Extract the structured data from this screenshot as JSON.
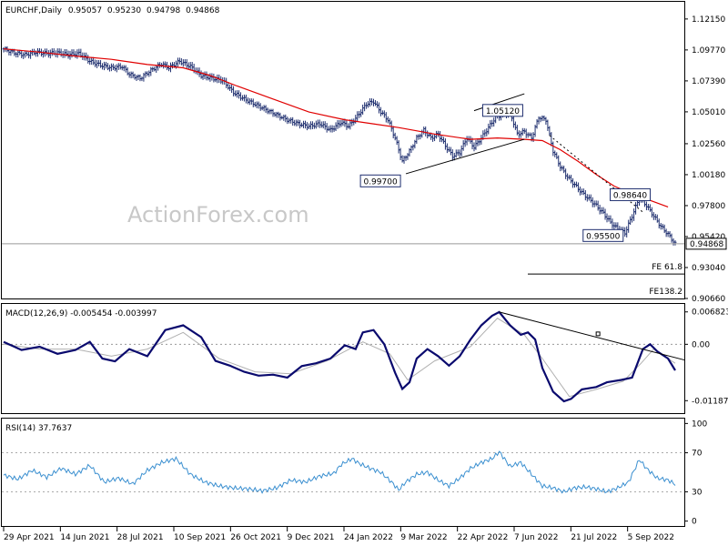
{
  "chart_data": [
    {
      "type": "ohlc",
      "title": "EURCHF,Daily",
      "ohlc_values": [
        "0.95057",
        "0.95230",
        "0.94798",
        "0.94868"
      ],
      "ylim": [
        0.9066,
        1.1347
      ],
      "y_ticks": [
        "1.12150",
        "1.09770",
        "1.07390",
        "1.05010",
        "1.02560",
        "1.00180",
        "0.97800",
        "0.95420",
        "0.93040",
        "0.90660"
      ],
      "x_ticks": [
        "29 Apr 2021",
        "14 Jun 2021",
        "28 Jul 2021",
        "10 Sep 2021",
        "26 Oct 2021",
        "9 Dec 2021",
        "24 Jan 2022",
        "9 Mar 2022",
        "22 Apr 2022",
        "7 Jun 2022",
        "21 Jul 2022",
        "5 Sep 2022"
      ],
      "last_price": "0.94868",
      "moving_average_color": "#e00000",
      "bar_color": "#1f2f6f",
      "close_path": [
        [
          0,
          1.0985
        ],
        [
          6,
          1.0955
        ],
        [
          12,
          1.094
        ],
        [
          18,
          1.096
        ],
        [
          24,
          1.095
        ],
        [
          30,
          1.0955
        ],
        [
          36,
          1.094
        ],
        [
          42,
          1.095
        ],
        [
          48,
          1.089
        ],
        [
          54,
          1.086
        ],
        [
          60,
          1.084
        ],
        [
          66,
          1.085
        ],
        [
          70,
          1.079
        ],
        [
          76,
          1.076
        ],
        [
          82,
          1.082
        ],
        [
          88,
          1.087
        ],
        [
          92,
          1.084
        ],
        [
          98,
          1.089
        ],
        [
          104,
          1.085
        ],
        [
          110,
          1.078
        ],
        [
          116,
          1.076
        ],
        [
          122,
          1.074
        ],
        [
          128,
          1.065
        ],
        [
          134,
          1.06
        ],
        [
          140,
          1.056
        ],
        [
          146,
          1.052
        ],
        [
          152,
          1.048
        ],
        [
          158,
          1.044
        ],
        [
          164,
          1.041
        ],
        [
          170,
          1.039
        ],
        [
          176,
          1.041
        ],
        [
          182,
          1.036
        ],
        [
          188,
          1.042
        ],
        [
          192,
          1.039
        ],
        [
          196,
          1.045
        ],
        [
          202,
          1.056
        ],
        [
          206,
          1.058
        ],
        [
          210,
          1.05
        ],
        [
          214,
          1.044
        ],
        [
          218,
          1.03
        ],
        [
          222,
          1.012
        ],
        [
          226,
          1.02
        ],
        [
          230,
          1.03
        ],
        [
          234,
          1.036
        ],
        [
          238,
          1.03
        ],
        [
          242,
          1.033
        ],
        [
          246,
          1.024
        ],
        [
          250,
          1.016
        ],
        [
          254,
          1.019
        ],
        [
          258,
          1.03
        ],
        [
          262,
          1.023
        ],
        [
          266,
          1.03
        ],
        [
          270,
          1.038
        ],
        [
          274,
          1.046
        ],
        [
          278,
          1.048
        ],
        [
          282,
          1.05
        ],
        [
          286,
          1.033
        ],
        [
          290,
          1.035
        ],
        [
          294,
          1.03
        ],
        [
          298,
          1.046
        ],
        [
          302,
          1.044
        ],
        [
          306,
          1.02
        ],
        [
          310,
          1.008
        ],
        [
          314,
          1.0
        ],
        [
          318,
          0.994
        ],
        [
          322,
          0.988
        ],
        [
          326,
          0.983
        ],
        [
          330,
          0.978
        ],
        [
          334,
          0.972
        ],
        [
          338,
          0.965
        ],
        [
          342,
          0.96
        ],
        [
          346,
          0.957
        ],
        [
          350,
          0.97
        ],
        [
          354,
          0.984
        ],
        [
          358,
          0.978
        ],
        [
          362,
          0.97
        ],
        [
          366,
          0.962
        ],
        [
          370,
          0.956
        ],
        [
          374,
          0.9487
        ]
      ],
      "moving_average": [
        [
          0,
          1.0985
        ],
        [
          20,
          1.096
        ],
        [
          40,
          1.093
        ],
        [
          60,
          1.0905
        ],
        [
          80,
          1.0865
        ],
        [
          100,
          1.084
        ],
        [
          115,
          1.078
        ],
        [
          130,
          1.07
        ],
        [
          150,
          1.06
        ],
        [
          170,
          1.05
        ],
        [
          190,
          1.044
        ],
        [
          205,
          1.041
        ],
        [
          220,
          1.038
        ],
        [
          240,
          1.033
        ],
        [
          260,
          1.029
        ],
        [
          275,
          1.03
        ],
        [
          290,
          1.029
        ],
        [
          300,
          1.028
        ],
        [
          310,
          1.021
        ],
        [
          320,
          1.012
        ],
        [
          330,
          1.002
        ],
        [
          340,
          0.993
        ],
        [
          350,
          0.987
        ],
        [
          360,
          0.982
        ],
        [
          370,
          0.977
        ]
      ],
      "annotations": [
        {
          "label": "0.99700",
          "bar": 221,
          "price": 0.997,
          "anchor": "left"
        },
        {
          "label": "1.05120",
          "bar": 283,
          "price": 1.0512,
          "anchor": "right"
        },
        {
          "label": "0.98640",
          "bar": 354,
          "price": 0.9864,
          "anchor": "right"
        },
        {
          "label": "0.95500",
          "bar": 345,
          "price": 0.955,
          "anchor": "left"
        }
      ],
      "fibonacci": [
        {
          "label": "FE 61.8",
          "price": 0.9282
        },
        {
          "label": "FE138.2",
          "price": 0.9095
        }
      ],
      "channel": [
        {
          "from": [
            224,
            1.0025
          ],
          "to": [
            290,
            1.029
          ]
        },
        {
          "from": [
            262,
            1.051
          ],
          "to": [
            290,
            1.064
          ]
        }
      ],
      "dotted_trendline": [
        [
          304,
          1.032
        ],
        [
          356,
          0.973
        ]
      ],
      "watermark": "ActionForex.com"
    },
    {
      "type": "line",
      "title": "MACD(12,26,9) -0.005454 -0.003997",
      "y_ticks": [
        "0.006823",
        "0.00",
        "-0.011874"
      ],
      "ylim": [
        -0.0145,
        0.0085
      ],
      "macd_color": "#0a0a6e",
      "signal_color": "#b0b0b0",
      "macd": [
        [
          0,
          0.0005
        ],
        [
          10,
          -0.0012
        ],
        [
          20,
          -0.0005
        ],
        [
          30,
          -0.002
        ],
        [
          40,
          -0.0012
        ],
        [
          48,
          0.0005
        ],
        [
          55,
          -0.003
        ],
        [
          62,
          -0.0036
        ],
        [
          70,
          -0.001
        ],
        [
          80,
          -0.0025
        ],
        [
          90,
          0.003
        ],
        [
          100,
          0.004
        ],
        [
          110,
          0.0015
        ],
        [
          118,
          -0.0035
        ],
        [
          126,
          -0.0045
        ],
        [
          134,
          -0.0058
        ],
        [
          142,
          -0.0066
        ],
        [
          150,
          -0.0064
        ],
        [
          158,
          -0.007
        ],
        [
          166,
          -0.0046
        ],
        [
          174,
          -0.004
        ],
        [
          182,
          -0.003
        ],
        [
          190,
          -0.0002
        ],
        [
          196,
          -0.001
        ],
        [
          200,
          0.0025
        ],
        [
          206,
          0.003
        ],
        [
          212,
          0.0
        ],
        [
          218,
          -0.006
        ],
        [
          222,
          -0.0094
        ],
        [
          226,
          -0.008
        ],
        [
          230,
          -0.003
        ],
        [
          236,
          -0.001
        ],
        [
          242,
          -0.0025
        ],
        [
          248,
          -0.0045
        ],
        [
          254,
          -0.0025
        ],
        [
          260,
          0.001
        ],
        [
          266,
          0.004
        ],
        [
          272,
          0.006
        ],
        [
          276,
          0.0068
        ],
        [
          282,
          0.004
        ],
        [
          288,
          0.002
        ],
        [
          292,
          0.0025
        ],
        [
          296,
          0.001
        ],
        [
          300,
          -0.005
        ],
        [
          306,
          -0.01
        ],
        [
          312,
          -0.012
        ],
        [
          316,
          -0.0115
        ],
        [
          322,
          -0.0095
        ],
        [
          330,
          -0.009
        ],
        [
          336,
          -0.008
        ],
        [
          344,
          -0.0075
        ],
        [
          350,
          -0.007
        ],
        [
          356,
          -0.001
        ],
        [
          360,
          0.0
        ],
        [
          364,
          -0.0015
        ],
        [
          370,
          -0.003
        ],
        [
          374,
          -0.0055
        ]
      ],
      "signal": [
        [
          0,
          0.0
        ],
        [
          20,
          -0.001
        ],
        [
          40,
          -0.001
        ],
        [
          60,
          -0.0025
        ],
        [
          80,
          -0.001
        ],
        [
          100,
          0.0025
        ],
        [
          120,
          -0.003
        ],
        [
          140,
          -0.0058
        ],
        [
          160,
          -0.0062
        ],
        [
          180,
          -0.0035
        ],
        [
          200,
          0.0005
        ],
        [
          215,
          -0.002
        ],
        [
          225,
          -0.0075
        ],
        [
          240,
          -0.0035
        ],
        [
          260,
          -0.0005
        ],
        [
          275,
          0.0055
        ],
        [
          290,
          0.002
        ],
        [
          300,
          -0.003
        ],
        [
          315,
          -0.011
        ],
        [
          330,
          -0.0095
        ],
        [
          345,
          -0.0078
        ],
        [
          355,
          -0.004
        ],
        [
          362,
          -0.001
        ],
        [
          374,
          -0.004
        ]
      ],
      "trendline": [
        [
          276,
          0.0068
        ],
        [
          374,
          -0.001
        ]
      ]
    },
    {
      "type": "line",
      "title": "RSI(14) 37.7637",
      "y_ticks": [
        "100",
        "70",
        "30",
        "0"
      ],
      "ylim": [
        -5,
        105
      ],
      "line_color": "#3a8fd0",
      "levels": [
        70,
        30
      ],
      "rsi": [
        [
          0,
          47
        ],
        [
          8,
          43
        ],
        [
          16,
          52
        ],
        [
          24,
          45
        ],
        [
          32,
          54
        ],
        [
          40,
          48
        ],
        [
          48,
          57
        ],
        [
          56,
          40
        ],
        [
          64,
          44
        ],
        [
          72,
          38
        ],
        [
          80,
          52
        ],
        [
          88,
          60
        ],
        [
          96,
          64
        ],
        [
          104,
          48
        ],
        [
          112,
          40
        ],
        [
          120,
          36
        ],
        [
          128,
          34
        ],
        [
          136,
          33
        ],
        [
          144,
          31
        ],
        [
          152,
          34
        ],
        [
          160,
          42
        ],
        [
          168,
          40
        ],
        [
          176,
          46
        ],
        [
          184,
          49
        ],
        [
          188,
          58
        ],
        [
          194,
          64
        ],
        [
          198,
          59
        ],
        [
          204,
          54
        ],
        [
          210,
          50
        ],
        [
          216,
          40
        ],
        [
          220,
          32
        ],
        [
          224,
          40
        ],
        [
          230,
          48
        ],
        [
          236,
          50
        ],
        [
          242,
          42
        ],
        [
          248,
          36
        ],
        [
          254,
          44
        ],
        [
          260,
          54
        ],
        [
          266,
          60
        ],
        [
          272,
          64
        ],
        [
          276,
          71
        ],
        [
          282,
          56
        ],
        [
          288,
          60
        ],
        [
          292,
          52
        ],
        [
          296,
          44
        ],
        [
          300,
          36
        ],
        [
          306,
          34
        ],
        [
          312,
          30
        ],
        [
          318,
          34
        ],
        [
          324,
          35
        ],
        [
          330,
          33
        ],
        [
          336,
          30
        ],
        [
          342,
          34
        ],
        [
          348,
          40
        ],
        [
          354,
          63
        ],
        [
          358,
          54
        ],
        [
          364,
          44
        ],
        [
          370,
          42
        ],
        [
          374,
          37.76
        ]
      ]
    }
  ]
}
